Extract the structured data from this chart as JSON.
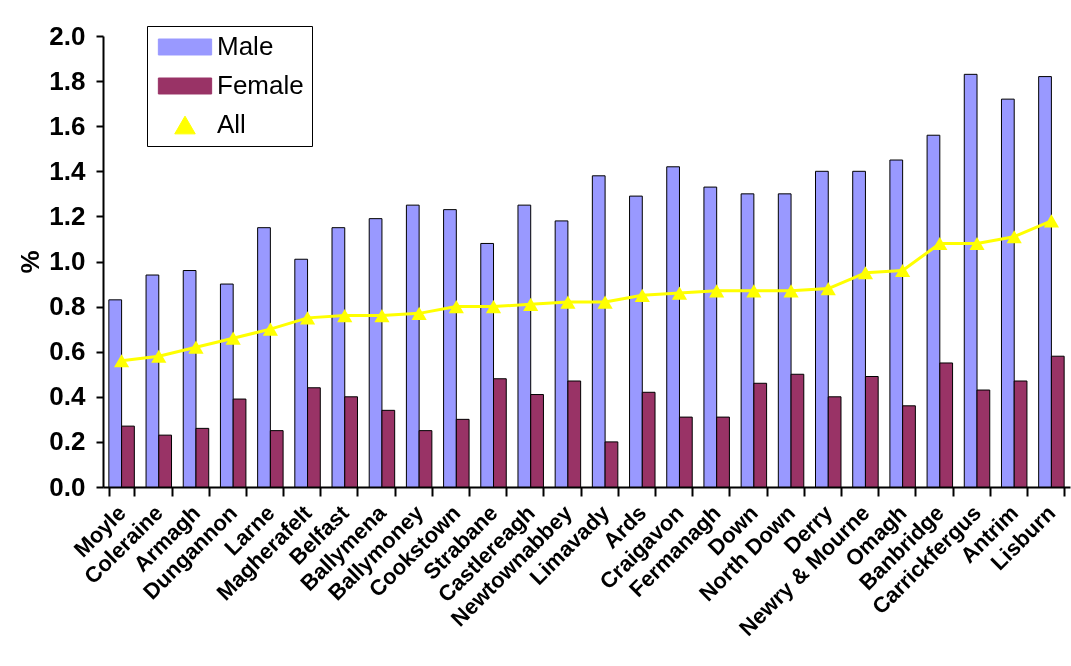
{
  "chart_data": {
    "type": "bar",
    "categories": [
      "Moyle",
      "Coleraine",
      "Armagh",
      "Dungannon",
      "Larne",
      "Magherafelt",
      "Belfast",
      "Ballymena",
      "Ballymoney",
      "Cookstown",
      "Strabane",
      "Castlereagh",
      "Newtownabbey",
      "Limavady",
      "Ards",
      "Craigavon",
      "Fermanagh",
      "Down",
      "North Down",
      "Derry",
      "Newry & Mourne",
      "Omagh",
      "Banbridge",
      "Carrickfergus",
      "Antrim",
      "Lisburn"
    ],
    "series": [
      {
        "name": "Male",
        "color": "#9999ff",
        "values": [
          0.83,
          0.94,
          0.96,
          0.9,
          1.15,
          1.01,
          1.15,
          1.19,
          1.25,
          1.23,
          1.08,
          1.25,
          1.18,
          1.38,
          1.29,
          1.42,
          1.33,
          1.3,
          1.3,
          1.4,
          1.4,
          1.45,
          1.56,
          1.83,
          1.72,
          1.82
        ]
      },
      {
        "name": "Female",
        "color": "#993366",
        "values": [
          0.27,
          0.23,
          0.26,
          0.39,
          0.25,
          0.44,
          0.4,
          0.34,
          0.25,
          0.3,
          0.48,
          0.41,
          0.47,
          0.2,
          0.42,
          0.31,
          0.31,
          0.46,
          0.5,
          0.4,
          0.49,
          0.36,
          0.55,
          0.43,
          0.47,
          0.58
        ]
      },
      {
        "name": "All",
        "type": "line",
        "color": "#ffff00",
        "marker": "triangle",
        "line_style": "solid",
        "values": [
          0.56,
          0.58,
          0.62,
          0.66,
          0.7,
          0.75,
          0.76,
          0.76,
          0.77,
          0.8,
          0.8,
          0.81,
          0.82,
          0.82,
          0.85,
          0.86,
          0.87,
          0.87,
          0.87,
          0.88,
          0.95,
          0.96,
          1.08,
          1.08,
          1.11,
          1.18
        ]
      }
    ],
    "ylabel": "%",
    "ylim": [
      0,
      2
    ],
    "yticks": [
      {
        "value": 0,
        "label": "0.0"
      },
      0.2,
      0.4,
      0.6,
      0.8,
      {
        "value": 1,
        "label": "1.0"
      },
      1.2,
      1.4,
      1.6,
      1.8,
      {
        "value": 2,
        "label": "2.0"
      }
    ],
    "legend": "top left"
  }
}
